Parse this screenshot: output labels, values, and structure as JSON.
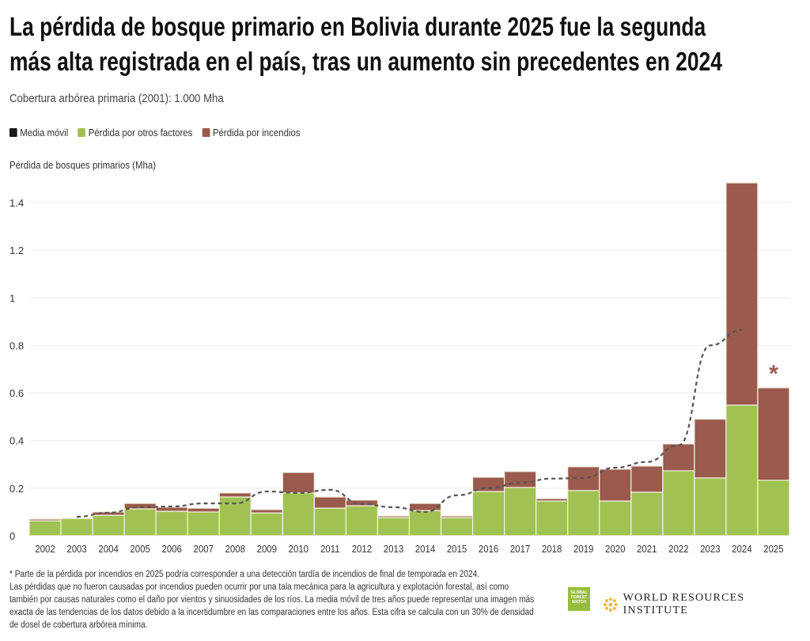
{
  "title_line1": "La pérdida de bosque primario en Bolivia durante 2025 fue la segunda",
  "title_line2": "más alta registrada en el país, tras un aumento sin precedentes en 2024",
  "subtitle": "Cobertura arbórea primaria (2001): 1.000 Mha",
  "legend": [
    {
      "label": "Media móvil",
      "color": "#1a1a1a"
    },
    {
      "label": "Pérdida por otros factores",
      "color": "#a0c253"
    },
    {
      "label": "Pérdida por incendios",
      "color": "#9b5a4e"
    }
  ],
  "chart_data": {
    "type": "bar",
    "stacked": true,
    "ylabel": "Pérdida de bosques primarios (Mha)",
    "ylim": [
      0,
      1.5
    ],
    "yticks": [
      "0",
      "0.2",
      "0.4",
      "0.6",
      "0.8",
      "1",
      "1.2",
      "1.4"
    ],
    "ytick_values": [
      0,
      0.2,
      0.4,
      0.6,
      0.8,
      1.0,
      1.2,
      1.4
    ],
    "grid": true,
    "categories": [
      "2002",
      "2003",
      "2004",
      "2005",
      "2006",
      "2007",
      "2008",
      "2009",
      "2010",
      "2011",
      "2012",
      "2013",
      "2014",
      "2015",
      "2016",
      "2017",
      "2018",
      "2019",
      "2020",
      "2021",
      "2022",
      "2023",
      "2024",
      "2025"
    ],
    "series": [
      {
        "name": "Pérdida por otros factores",
        "color": "#a0c253",
        "values": [
          0.063,
          0.073,
          0.086,
          0.113,
          0.103,
          0.1,
          0.163,
          0.096,
          0.18,
          0.116,
          0.126,
          0.076,
          0.106,
          0.076,
          0.186,
          0.203,
          0.146,
          0.19,
          0.146,
          0.183,
          0.273,
          0.243,
          0.549,
          0.233
        ]
      },
      {
        "name": "Pérdida por incendios",
        "color": "#9b5a4e",
        "values": [
          0.007,
          0.003,
          0.014,
          0.023,
          0.017,
          0.016,
          0.017,
          0.014,
          0.086,
          0.047,
          0.024,
          0.007,
          0.03,
          0.007,
          0.06,
          0.067,
          0.01,
          0.1,
          0.134,
          0.11,
          0.113,
          0.247,
          0.934,
          0.389
        ]
      }
    ],
    "moving_average": {
      "name": "Media móvil",
      "color": "#555555",
      "x": [
        "2003",
        "2004",
        "2005",
        "2006",
        "2007",
        "2008",
        "2009",
        "2010",
        "2011",
        "2012",
        "2013",
        "2014",
        "2015",
        "2016",
        "2017",
        "2018",
        "2019",
        "2020",
        "2021",
        "2022",
        "2023",
        "2024"
      ],
      "values": [
        0.08,
        0.097,
        0.12,
        0.123,
        0.136,
        0.136,
        0.186,
        0.18,
        0.193,
        0.133,
        0.12,
        0.1,
        0.17,
        0.2,
        0.223,
        0.24,
        0.243,
        0.286,
        0.31,
        0.38,
        0.8,
        0.865
      ]
    },
    "annotation": {
      "category": "2025",
      "text": "*",
      "color": "#9b5a4e"
    }
  },
  "footnote_star": "* Parte de la pérdida por incendios en 2025 podría corresponder a una detección tardía de incendios de final de temporada en 2024.",
  "footnote_body": "Las pérdidas que no fueron causadas por incendios pueden ocurrir por una tala mecánica para la agricultura y explotación forestal, así como también por causas naturales como el daño por vientos y sinuosidades de los ríos. La media móvil de tres años puede representar una imagen más exacta de las tendencias de los datos debido a la incertidumbre en las comparaciones entre los años. Esta cifra se calcula con un 30% de densidad de dosel de cobertura arbórea mínima.",
  "logos": {
    "gfw": "GLOBAL FOREST WATCH",
    "wri": "WORLD RESOURCES INSTITUTE"
  }
}
